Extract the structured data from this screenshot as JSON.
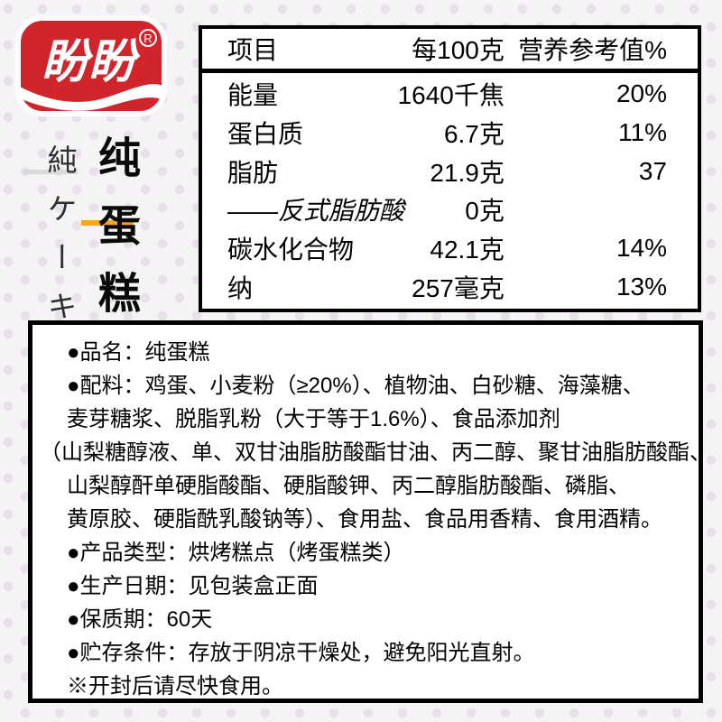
{
  "page": {
    "background_color": "#f5f3f6",
    "dot_color": "#e7e2e9"
  },
  "logo": {
    "brand_text": "盼盼",
    "registered_mark": "R",
    "color": "#d2242b"
  },
  "side_titles": {
    "japanese_vertical": "純ケーキ",
    "chinese_vertical": "纯蛋糕",
    "accent_color": "#f7a41f"
  },
  "nutrition_table": {
    "headers": {
      "item": "项目",
      "per_100g": "每100克",
      "nrv": "营养参考值%"
    },
    "rows": [
      {
        "item": "能量",
        "value": "1640千焦",
        "nrv": "20%",
        "italic": false
      },
      {
        "item": "蛋白质",
        "value": "6.7克",
        "nrv": "11%",
        "italic": false
      },
      {
        "item": "脂肪",
        "value": "21.9克",
        "nrv": "37",
        "italic": false
      },
      {
        "item": "——反式脂肪酸",
        "value": "0克",
        "nrv": "",
        "italic": true
      },
      {
        "item": "碳水化合物",
        "value": "42.1克",
        "nrv": "14%",
        "italic": false
      },
      {
        "item": "纳",
        "value": "257毫克",
        "nrv": "13%",
        "italic": false
      }
    ]
  },
  "info_box": {
    "lines": [
      "●品名：纯蛋糕",
      "●配料：鸡蛋、小麦粉（≥20%）、植物油、白砂糖、海藻糖、",
      "麦芽糖浆、脱脂乳粉（大于等于1.6%）、食品添加剂",
      "（山梨糖醇液、单、双甘油脂肪酸酯甘油、丙二醇、聚甘油脂肪酸酯、",
      "山梨醇酐单硬脂酸酯、硬脂酸钾、丙二醇脂肪酸酯、磷脂、",
      "黄原胶、硬脂酰乳酸钠等）、食用盐、食品用香精、食用酒精。",
      "●产品类型：烘烤糕点（烤蛋糕类）",
      "●生产日期：见包装盒正面",
      "●保质期：60天",
      "●贮存条件：存放于阴凉干燥处，避免阳光直射。",
      "※开封后请尽快食用。"
    ]
  }
}
